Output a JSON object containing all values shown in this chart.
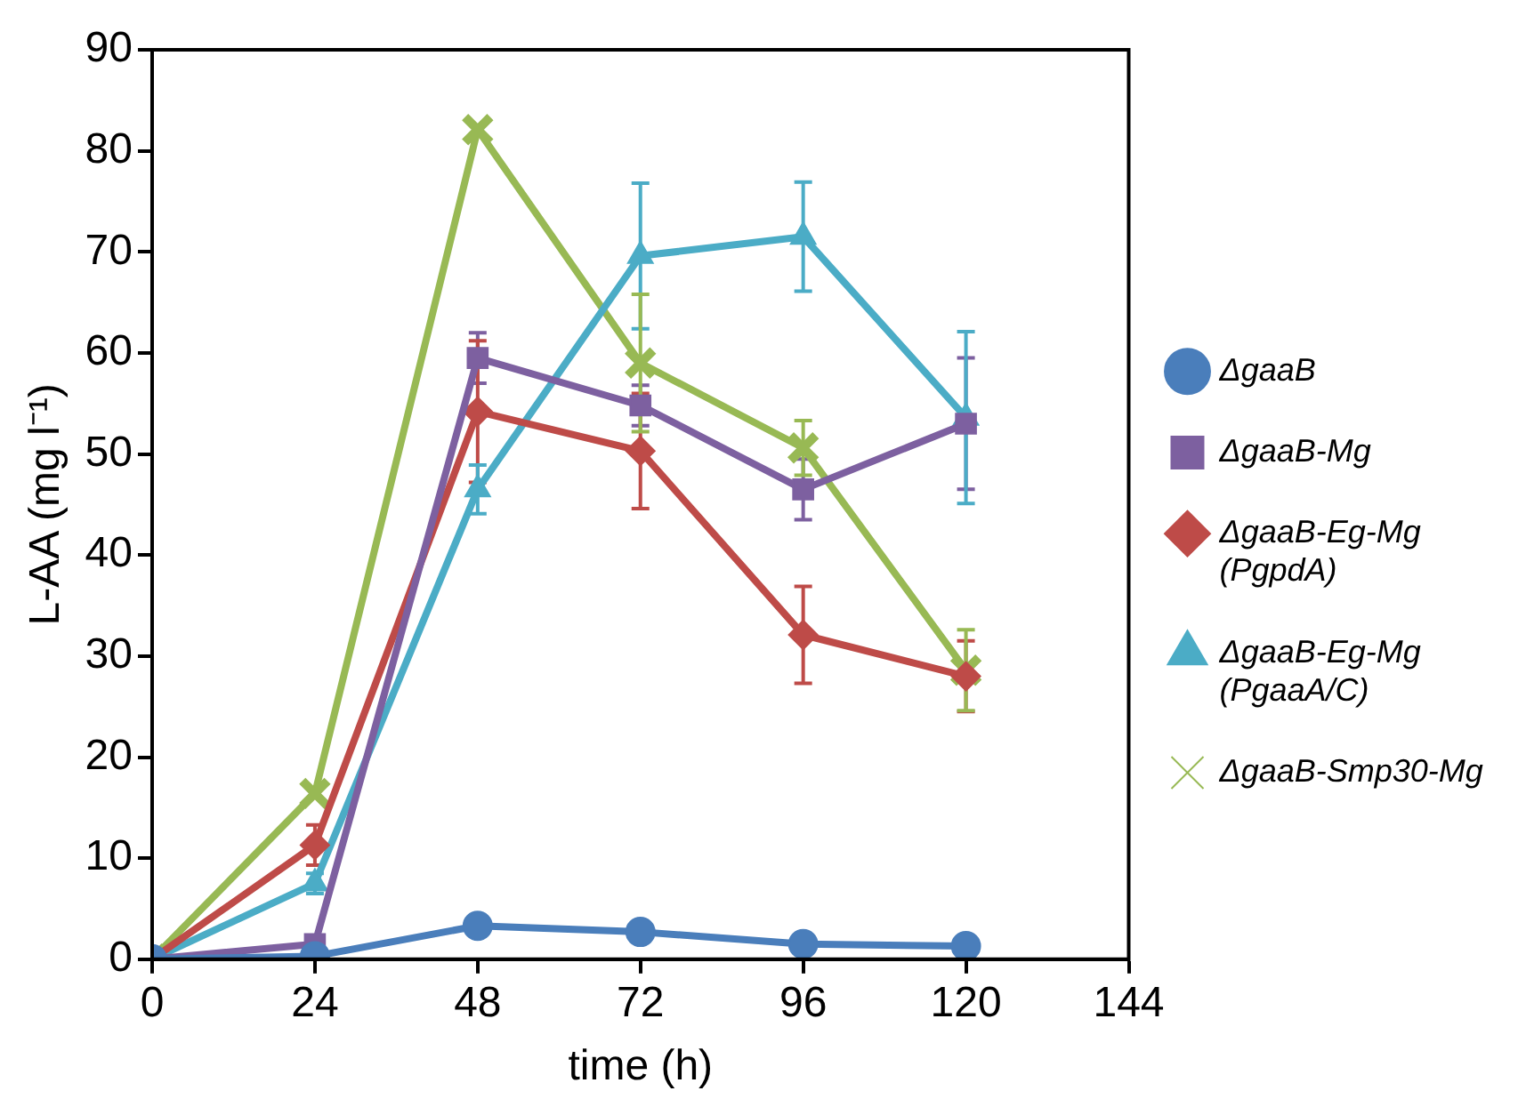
{
  "chart_data": {
    "type": "line",
    "xlabel": "time (h)",
    "ylabel": "L-AA (mg l⁻¹)",
    "x": [
      0,
      24,
      48,
      72,
      96,
      120
    ],
    "xlim": [
      0,
      144
    ],
    "xticks": [
      0,
      24,
      48,
      72,
      96,
      120,
      144
    ],
    "ylim": [
      0,
      90
    ],
    "yticks": [
      0,
      10,
      20,
      30,
      40,
      50,
      60,
      70,
      80,
      90
    ],
    "grid": false,
    "legend": "right",
    "line_style": "solid",
    "series": [
      {
        "name": "ΔgaaB",
        "color": "#4a7ebb",
        "marker": "circle",
        "values": [
          0,
          0.3,
          3.3,
          2.7,
          1.5,
          1.3
        ]
      },
      {
        "name": "ΔgaaB-Mg",
        "color": "#7d60a0",
        "marker": "square",
        "values": [
          0,
          1.5,
          59.5,
          54.8,
          46.5,
          53
        ],
        "errors": [
          null,
          null,
          2.5,
          2,
          3,
          6.5
        ]
      },
      {
        "name": "ΔgaaB-Eg-Mg (PgpdA)",
        "color": "#be4b48",
        "marker": "diamond",
        "values": [
          0,
          11.3,
          54.2,
          50.3,
          32.1,
          28
        ],
        "errors": [
          null,
          2,
          7,
          5.7,
          4.8,
          3.5
        ]
      },
      {
        "name": "ΔgaaB-Eg-Mg (PgaaA/C)",
        "color": "#4bacc6",
        "marker": "triangle",
        "values": [
          0,
          7.5,
          46.5,
          69.6,
          71.5,
          53.6
        ],
        "errors": [
          null,
          1,
          2.4,
          7.2,
          5.4,
          8.5
        ]
      },
      {
        "name": "ΔgaaB-Smp30-Mg",
        "color": "#98b954",
        "marker": "cross",
        "values": [
          0,
          16.4,
          82.1,
          59,
          50.6,
          28.6
        ],
        "errors": [
          null,
          null,
          null,
          6.8,
          2.7,
          4
        ]
      }
    ]
  }
}
